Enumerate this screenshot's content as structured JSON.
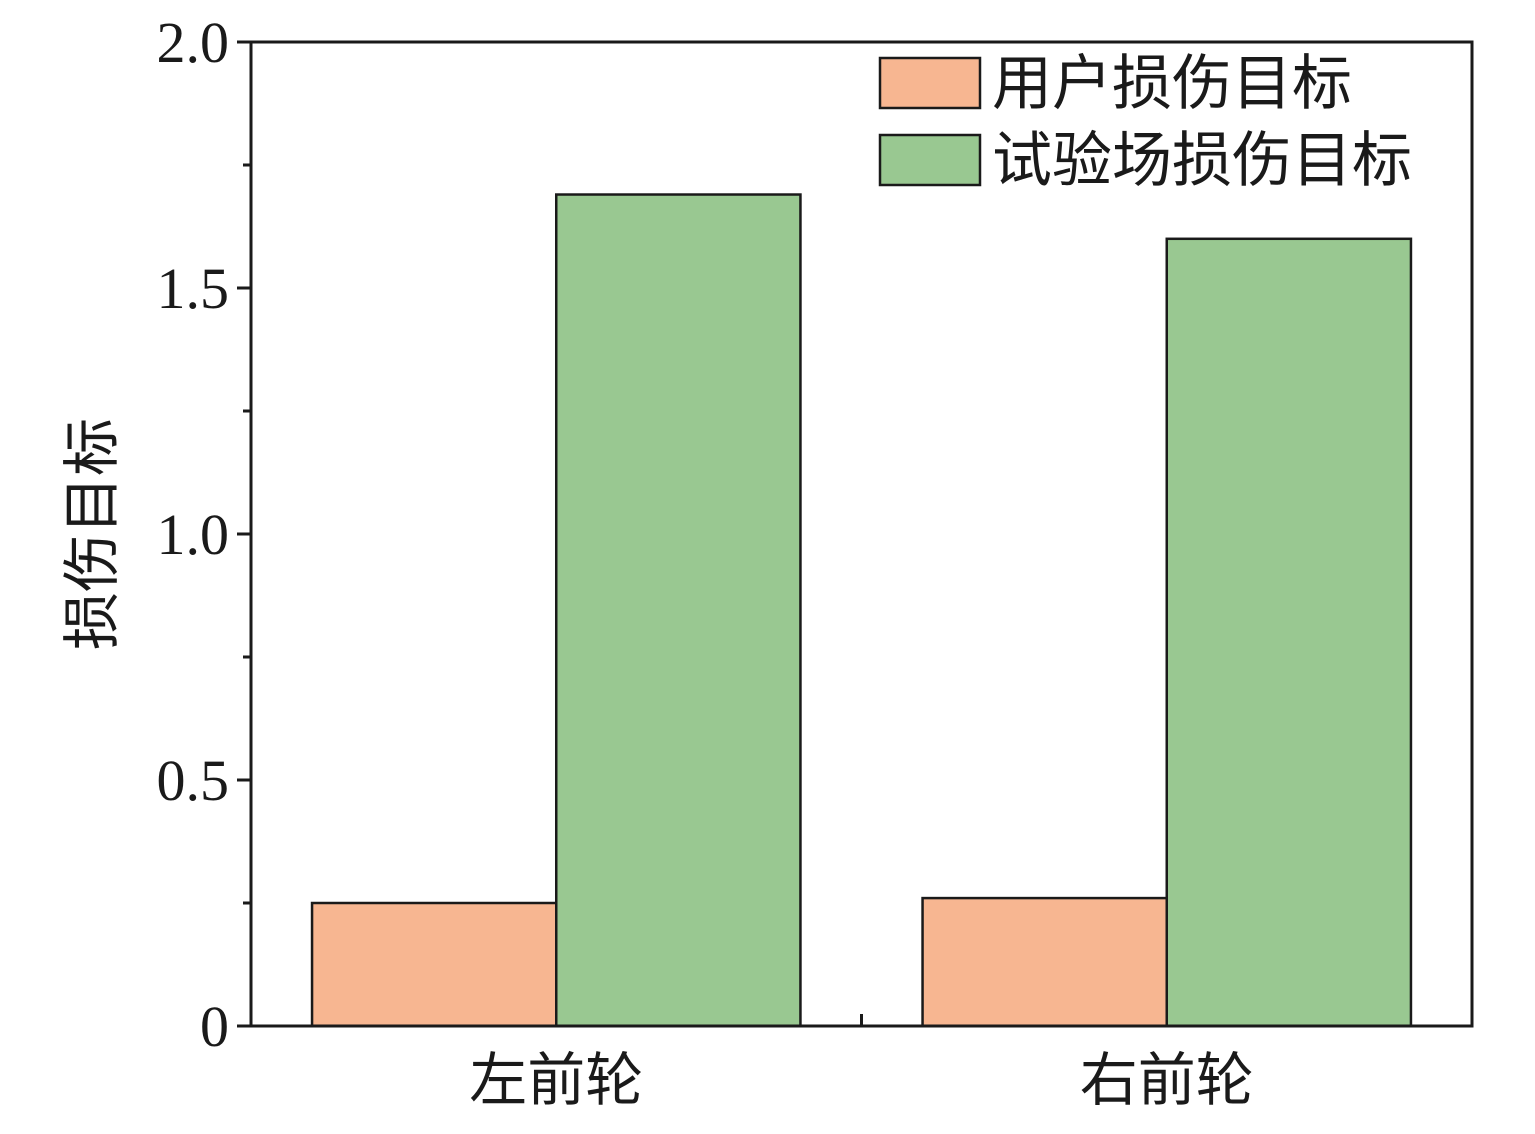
{
  "chart_data": {
    "type": "bar",
    "categories": [
      "左前轮",
      "右前轮"
    ],
    "series": [
      {
        "name": "用户损伤目标",
        "color": "#F7B691",
        "values": [
          0.25,
          0.26
        ]
      },
      {
        "name": "试验场损伤目标",
        "color": "#99C891",
        "values": [
          1.69,
          1.6
        ]
      }
    ],
    "ylabel": "损伤目标",
    "ylim": [
      0,
      2.0
    ],
    "yticks": [
      {
        "value": 0,
        "label": "0"
      },
      {
        "value": 0.5,
        "label": "0.5"
      },
      {
        "value": 1.0,
        "label": "1.0"
      },
      {
        "value": 1.5,
        "label": "1.5"
      },
      {
        "value": 2.0,
        "label": "2.0"
      }
    ],
    "minor_yticks": [
      0.25,
      0.75,
      1.25,
      1.75
    ],
    "grid": false,
    "legend_position": "top-right"
  }
}
